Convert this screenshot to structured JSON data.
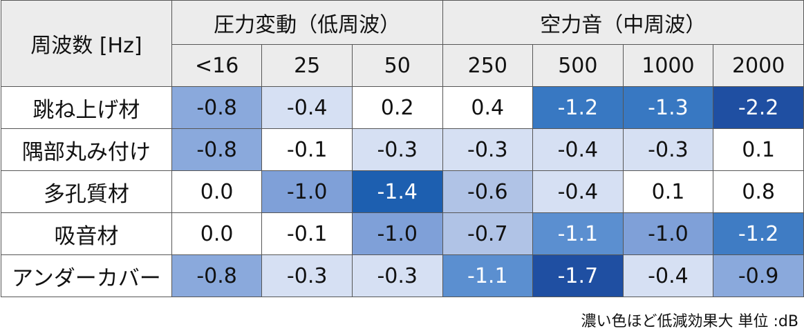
{
  "table": {
    "corner_label": "周波数 [Hz]",
    "groups": [
      {
        "label": "圧力変動（低周波）",
        "span": 3
      },
      {
        "label": "空力音（中周波）",
        "span": 4
      }
    ],
    "frequencies": [
      "<16",
      "25",
      "50",
      "250",
      "500",
      "1000",
      "2000"
    ],
    "rows": [
      {
        "label": "跳ね上げ材",
        "values": [
          "-0.8",
          "-0.4",
          "0.2",
          "0.4",
          "-1.2",
          "-1.3",
          "-2.2"
        ],
        "colors": [
          "#8aa9dc",
          "#d6e0f3",
          "#ffffff",
          "#ffffff",
          "#3878c2",
          "#3878c2",
          "#1f4fa2"
        ]
      },
      {
        "label": "隅部丸み付け",
        "values": [
          "-0.8",
          "-0.1",
          "-0.3",
          "-0.3",
          "-0.4",
          "-0.3",
          "0.1"
        ],
        "colors": [
          "#8aa9dc",
          "#ffffff",
          "#d6e0f3",
          "#d6e0f3",
          "#d6e0f3",
          "#d6e0f3",
          "#ffffff"
        ]
      },
      {
        "label": "多孔質材",
        "values": [
          "0.0",
          "-1.0",
          "-1.4",
          "-0.6",
          "-0.4",
          "0.1",
          "0.8"
        ],
        "colors": [
          "#ffffff",
          "#7fa0d8",
          "#1d5fb0",
          "#b0c3e6",
          "#d6e0f3",
          "#ffffff",
          "#ffffff"
        ]
      },
      {
        "label": "吸音材",
        "values": [
          "0.0",
          "-0.1",
          "-1.0",
          "-0.7",
          "-1.1",
          "-1.0",
          "-1.2"
        ],
        "colors": [
          "#ffffff",
          "#ffffff",
          "#7fa0d8",
          "#b0c3e6",
          "#5b8fd0",
          "#7fa0d8",
          "#3f7cc4"
        ]
      },
      {
        "label": "アンダーカバー",
        "values": [
          "-0.8",
          "-0.3",
          "-0.3",
          "-1.1",
          "-1.7",
          "-0.4",
          "-0.9"
        ],
        "colors": [
          "#8aa9dc",
          "#d6e0f3",
          "#d6e0f3",
          "#5b8fd0",
          "#1f4fa2",
          "#d6e0f3",
          "#8aa9dc"
        ]
      }
    ]
  },
  "note": "濃い色ほど低減効果大  単位 :dB"
}
